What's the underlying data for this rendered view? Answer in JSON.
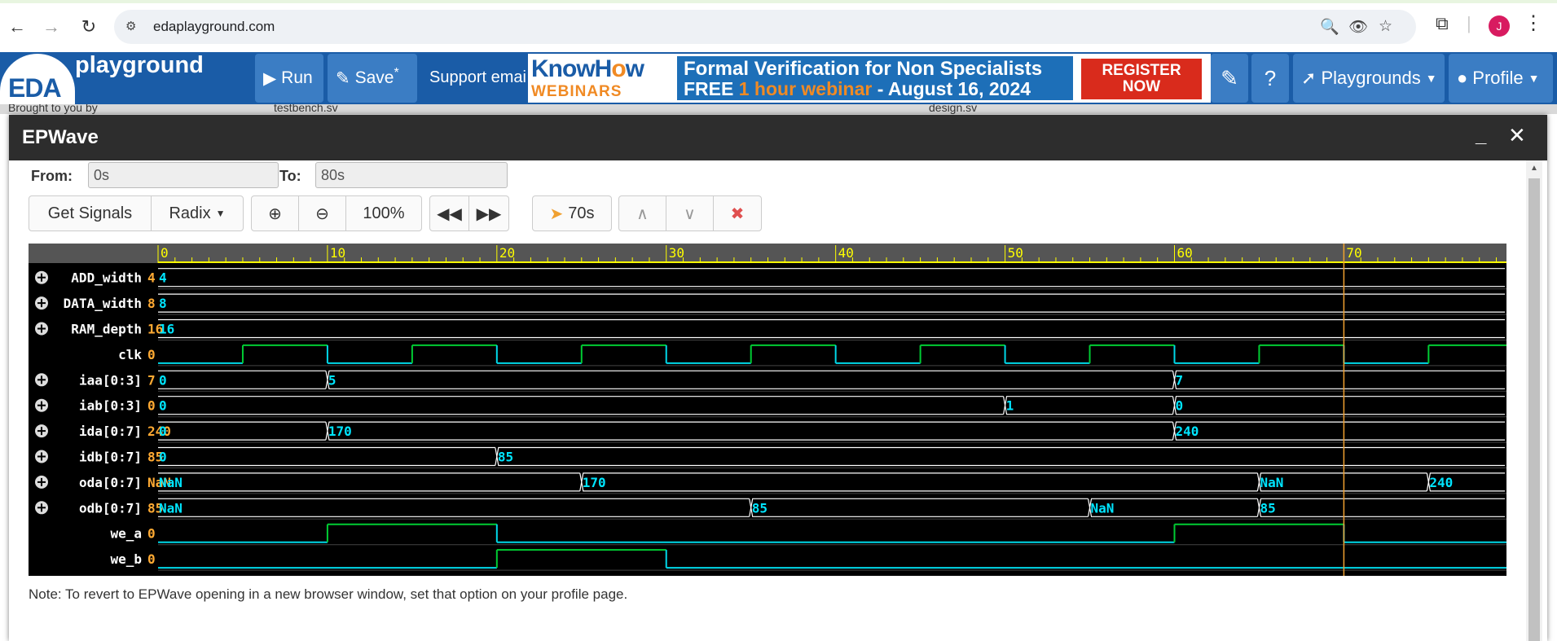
{
  "browser": {
    "url": "edaplayground.com",
    "avatar_letter": "J"
  },
  "header": {
    "logo_short": "EDA",
    "logo_text": "playground",
    "run_label": "Run",
    "save_label": "Save",
    "save_mark": "*",
    "support_label": "Support emai",
    "playgrounds_label": "Playgrounds",
    "profile_label": "Profile"
  },
  "banner": {
    "brand_part1": "KnowH",
    "brand_o": "o",
    "brand_part2": "w",
    "brand_sub": "WEBINARS",
    "line1": "Formal Verification for Non Specialists",
    "line2_a": "FREE ",
    "line2_b": "1 hour webinar",
    "line2_c": "  -  August 16, 2024",
    "register_l1": "REGISTER",
    "register_l2": "NOW"
  },
  "background_tabs": {
    "brought": "Brought to you by",
    "tab1": "testbench.sv",
    "tab2": "design.sv"
  },
  "epwave": {
    "title": "EPWave",
    "from_label": "From:",
    "from_value": "0s",
    "to_label": "To:",
    "to_value": "80s",
    "get_signals": "Get Signals",
    "radix": "Radix",
    "zoom_level": "100%",
    "cursor_time": "70s",
    "note": "Note: To revert to EPWave opening in a new browser window, set that option on your profile page."
  },
  "chart_data": {
    "type": "timing",
    "time_range": [
      0,
      80
    ],
    "time_unit": "s",
    "ruler_labels": [
      "0",
      "10",
      "20",
      "30",
      "40",
      "50",
      "60",
      "70"
    ],
    "cursor_time": 70,
    "clock": {
      "period": 10,
      "rise_at": 5
    },
    "signals": [
      {
        "name": "ADD_width",
        "value": "4",
        "expandable": true,
        "kind": "bus",
        "segments": [
          {
            "t": 0,
            "v": "4"
          }
        ]
      },
      {
        "name": "DATA_width",
        "value": "8",
        "expandable": true,
        "kind": "bus",
        "segments": [
          {
            "t": 0,
            "v": "8"
          }
        ]
      },
      {
        "name": "RAM_depth",
        "value": "16",
        "expandable": true,
        "kind": "bus",
        "segments": [
          {
            "t": 0,
            "v": "16"
          }
        ]
      },
      {
        "name": "clk",
        "value": "0",
        "expandable": false,
        "kind": "clock"
      },
      {
        "name": "iaa[0:3]",
        "value": "7",
        "expandable": true,
        "kind": "bus",
        "segments": [
          {
            "t": 0,
            "v": "0"
          },
          {
            "t": 10,
            "v": "5"
          },
          {
            "t": 60,
            "v": "7"
          }
        ]
      },
      {
        "name": "iab[0:3]",
        "value": "0",
        "expandable": true,
        "kind": "bus",
        "segments": [
          {
            "t": 0,
            "v": "0"
          },
          {
            "t": 50,
            "v": "1"
          },
          {
            "t": 60,
            "v": "0"
          }
        ]
      },
      {
        "name": "ida[0:7]",
        "value": "240",
        "expandable": true,
        "kind": "bus",
        "segments": [
          {
            "t": 0,
            "v": "0"
          },
          {
            "t": 10,
            "v": "170"
          },
          {
            "t": 60,
            "v": "240"
          }
        ]
      },
      {
        "name": "idb[0:7]",
        "value": "85",
        "expandable": true,
        "kind": "bus",
        "segments": [
          {
            "t": 0,
            "v": "0"
          },
          {
            "t": 20,
            "v": "85"
          }
        ]
      },
      {
        "name": "oda[0:7]",
        "value": "NaN",
        "expandable": true,
        "kind": "bus",
        "segments": [
          {
            "t": 0,
            "v": "NaN"
          },
          {
            "t": 25,
            "v": "170"
          },
          {
            "t": 65,
            "v": "NaN"
          },
          {
            "t": 75,
            "v": "240"
          }
        ]
      },
      {
        "name": "odb[0:7]",
        "value": "85",
        "expandable": true,
        "kind": "bus",
        "segments": [
          {
            "t": 0,
            "v": "NaN"
          },
          {
            "t": 35,
            "v": "85"
          },
          {
            "t": 55,
            "v": "NaN"
          },
          {
            "t": 65,
            "v": "85"
          }
        ]
      },
      {
        "name": "we_a",
        "value": "0",
        "expandable": false,
        "kind": "bit",
        "edges": [
          {
            "t": 0,
            "v": 0
          },
          {
            "t": 10,
            "v": 1
          },
          {
            "t": 20,
            "v": 0
          },
          {
            "t": 60,
            "v": 1
          },
          {
            "t": 70,
            "v": 0
          }
        ]
      },
      {
        "name": "we_b",
        "value": "0",
        "expandable": false,
        "kind": "bit",
        "edges": [
          {
            "t": 0,
            "v": 0
          },
          {
            "t": 20,
            "v": 1
          },
          {
            "t": 30,
            "v": 0
          }
        ]
      }
    ],
    "colors": {
      "ruler": "#ffff00",
      "ruler_bg": "#555555",
      "bus_value": "#00e5ff",
      "high": "#00cc33",
      "low": "#00d8e8",
      "cursor": "#f0a030",
      "signal_name": "#ffffff",
      "signal_value": "#ffaa33"
    }
  }
}
